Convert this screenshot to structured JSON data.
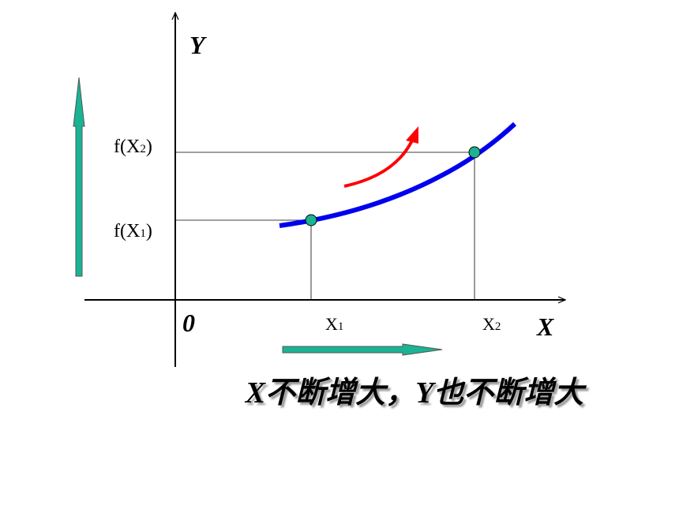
{
  "axes": {
    "y_label": "Y",
    "x_label": "X",
    "origin": "0"
  },
  "points": [
    {
      "x_label": {
        "base": "X",
        "sub": "1"
      },
      "y_label": {
        "prefix": "f(X",
        "sub": "1",
        "suffix": ")"
      }
    },
    {
      "x_label": {
        "base": "X",
        "sub": "2"
      },
      "y_label": {
        "prefix": "f(X",
        "sub": "2",
        "suffix": ")"
      }
    }
  ],
  "caption": "X不断增大，Y也不断增大"
}
